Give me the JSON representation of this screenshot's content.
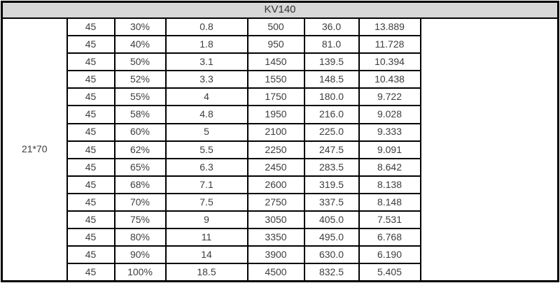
{
  "table": {
    "title": "KV140",
    "row_group_label": "21*70",
    "empty_column_value": "",
    "rows": [
      [
        "45",
        "30%",
        "0.8",
        "500",
        "36.0",
        "13.889"
      ],
      [
        "45",
        "40%",
        "1.8",
        "950",
        "81.0",
        "11.728"
      ],
      [
        "45",
        "50%",
        "3.1",
        "1450",
        "139.5",
        "10.394"
      ],
      [
        "45",
        "52%",
        "3.3",
        "1550",
        "148.5",
        "10.438"
      ],
      [
        "45",
        "55%",
        "4",
        "1750",
        "180.0",
        "9.722"
      ],
      [
        "45",
        "58%",
        "4.8",
        "1950",
        "216.0",
        "9.028"
      ],
      [
        "45",
        "60%",
        "5",
        "2100",
        "225.0",
        "9.333"
      ],
      [
        "45",
        "62%",
        "5.5",
        "2250",
        "247.5",
        "9.091"
      ],
      [
        "45",
        "65%",
        "6.3",
        "2450",
        "283.5",
        "8.642"
      ],
      [
        "45",
        "68%",
        "7.1",
        "2600",
        "319.5",
        "8.138"
      ],
      [
        "45",
        "70%",
        "7.5",
        "2750",
        "337.5",
        "8.148"
      ],
      [
        "45",
        "75%",
        "9",
        "3050",
        "405.0",
        "7.531"
      ],
      [
        "45",
        "80%",
        "11",
        "3350",
        "495.0",
        "6.768"
      ],
      [
        "45",
        "90%",
        "14",
        "3900",
        "630.0",
        "6.190"
      ],
      [
        "45",
        "100%",
        "18.5",
        "4500",
        "832.5",
        "5.405"
      ]
    ]
  },
  "colors": {
    "header_bg": "#d8d8d8",
    "border": "#000000",
    "text": "#3d3d3d"
  }
}
